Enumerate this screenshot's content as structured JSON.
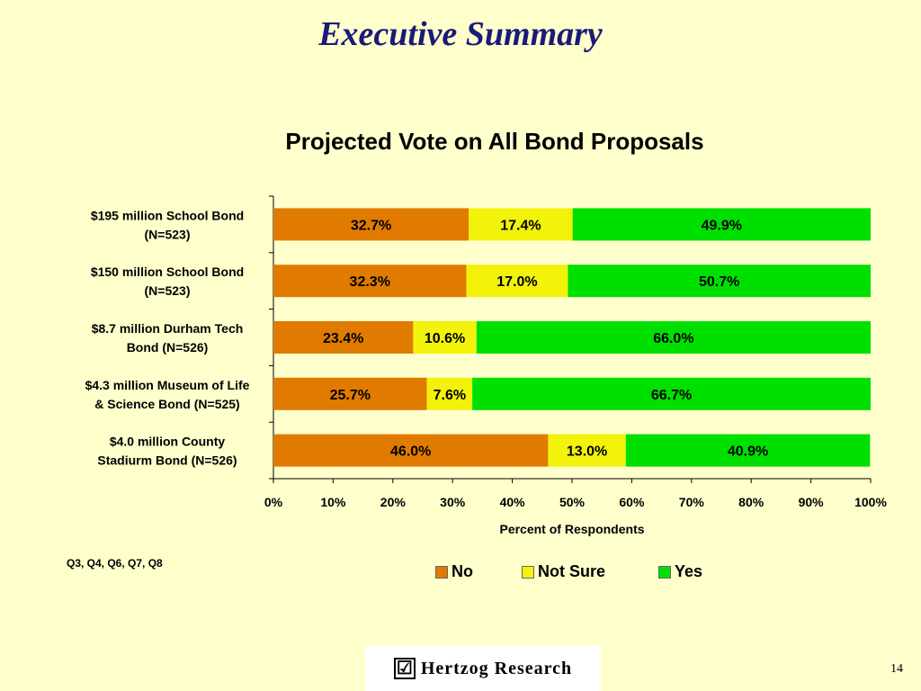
{
  "slide": {
    "title": "Executive Summary",
    "page_number": "14",
    "source_note": "Q3, Q4, Q6, Q7, Q8",
    "logo_text": "Hertzog Research",
    "logo_mark": "☑"
  },
  "chart_data": {
    "type": "bar",
    "orientation": "horizontal",
    "stacked": true,
    "title": "Projected Vote on All Bond Proposals",
    "xlabel": "Percent of Respondents",
    "ylabel": "",
    "xlim": [
      0,
      100
    ],
    "x_ticks": [
      "0%",
      "10%",
      "20%",
      "30%",
      "40%",
      "50%",
      "60%",
      "70%",
      "80%",
      "90%",
      "100%"
    ],
    "categories": [
      [
        "$195 million School Bond",
        "(N=523)"
      ],
      [
        "$150 million School Bond",
        "(N=523)"
      ],
      [
        "$8.7 million Durham Tech",
        "Bond (N=526)"
      ],
      [
        "$4.3 million Museum of Life",
        "& Science Bond (N=525)"
      ],
      [
        "$4.0 million County",
        "Stadiurm Bond (N=526)"
      ]
    ],
    "series": [
      {
        "name": "No",
        "color": "#e07b00",
        "values": [
          32.7,
          32.3,
          23.4,
          25.7,
          46.0
        ],
        "labels": [
          "32.7%",
          "32.3%",
          "23.4%",
          "25.7%",
          "46.0%"
        ]
      },
      {
        "name": "Not Sure",
        "color": "#f2f20a",
        "values": [
          17.4,
          17.0,
          10.6,
          7.6,
          13.0
        ],
        "labels": [
          "17.4%",
          "17.0%",
          "10.6%",
          "7.6%",
          "13.0%"
        ]
      },
      {
        "name": "Yes",
        "color": "#00e000",
        "values": [
          49.9,
          50.7,
          66.0,
          66.7,
          40.9
        ],
        "labels": [
          "49.9%",
          "50.7%",
          "66.0%",
          "66.7%",
          "40.9%"
        ]
      }
    ],
    "legend_position": "bottom",
    "grid": false
  }
}
